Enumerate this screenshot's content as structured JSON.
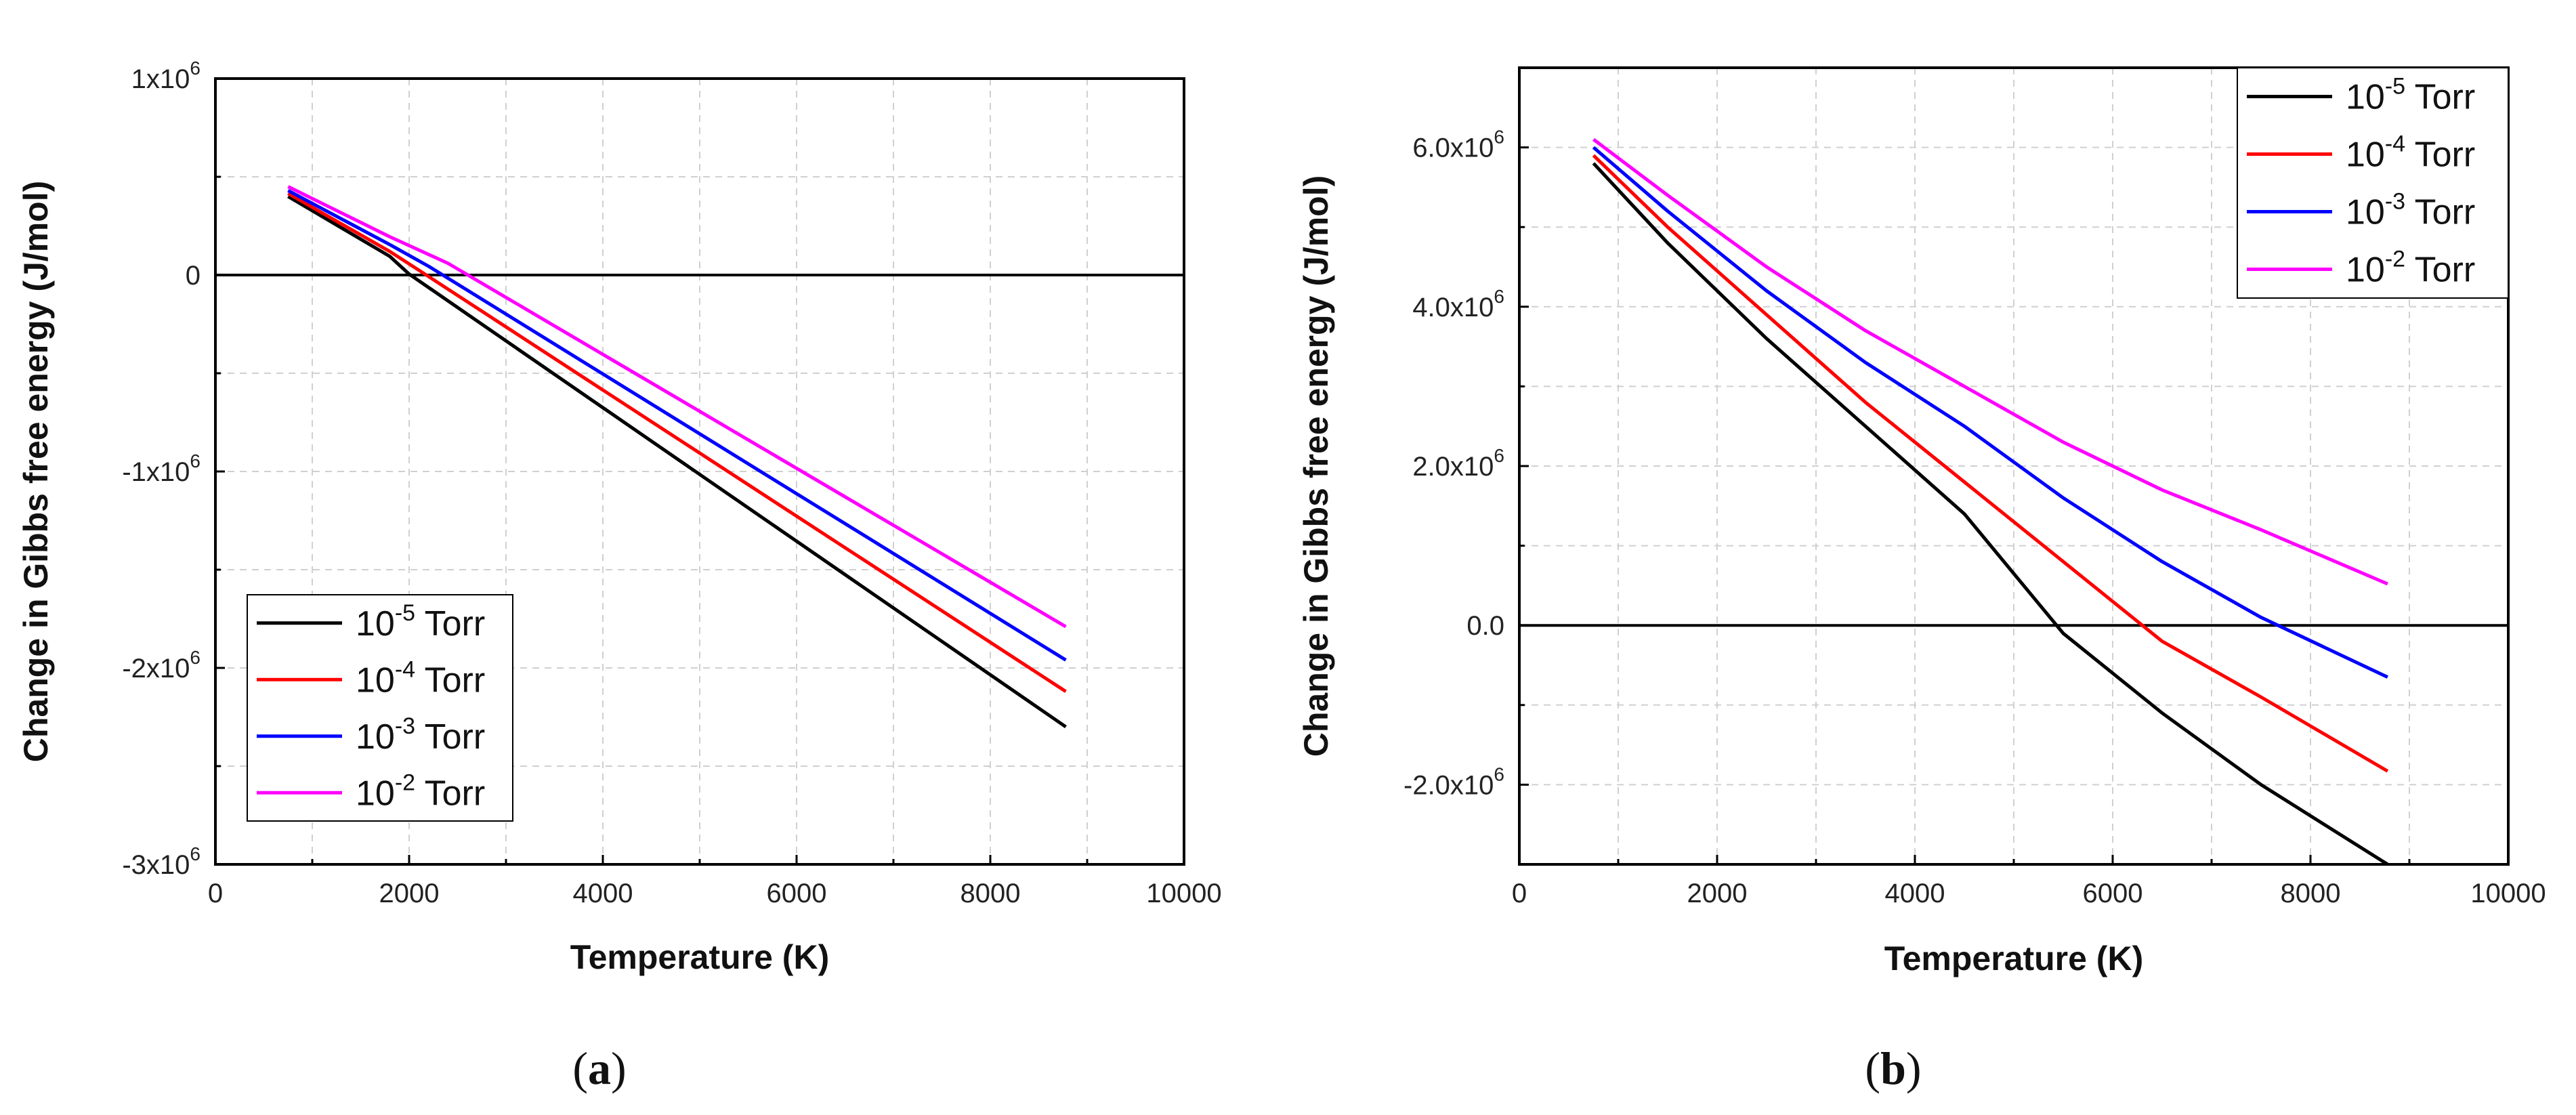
{
  "chart_data": [
    {
      "type": "line",
      "panel_label": "a",
      "xlabel": "Temperature (K)",
      "ylabel": "Change in Gibbs free energy (J/mol)",
      "xlim": [
        0,
        10000
      ],
      "ylim": [
        -3000000,
        1000000
      ],
      "x_ticks": [
        0,
        2000,
        4000,
        6000,
        8000,
        10000
      ],
      "x_tick_labels": [
        "0",
        "2000",
        "4000",
        "6000",
        "8000",
        "10000"
      ],
      "y_ticks": [
        1000000,
        0,
        -1000000,
        -2000000,
        -3000000
      ],
      "y_tick_labels": [
        {
          "base": "1x10",
          "exp": "6"
        },
        {
          "base": "0",
          "exp": ""
        },
        {
          "base": "-1x10",
          "exp": "6"
        },
        {
          "base": "-2x10",
          "exp": "6"
        },
        {
          "base": "-3x10",
          "exp": "6"
        }
      ],
      "grid": true,
      "zero_line": true,
      "legend_position": "bottom-left",
      "series": [
        {
          "name": "10-5 Torr",
          "legend_base": "10",
          "legend_exp": "-5",
          "legend_unit": " Torr",
          "color": "#000000",
          "x": [
            750,
            1800,
            2000,
            8780
          ],
          "y": [
            400000,
            95000,
            5000,
            -2300000
          ]
        },
        {
          "name": "10-4 Torr",
          "legend_base": "10",
          "legend_exp": "-4",
          "legend_unit": " Torr",
          "color": "#ff0000",
          "x": [
            750,
            1800,
            2100,
            8780
          ],
          "y": [
            415000,
            120000,
            25000,
            -2120000
          ]
        },
        {
          "name": "10-3 Torr",
          "legend_base": "10",
          "legend_exp": "-3",
          "legend_unit": " Torr",
          "color": "#0000ff",
          "x": [
            750,
            1800,
            2200,
            8780
          ],
          "y": [
            430000,
            155000,
            45000,
            -1960000
          ]
        },
        {
          "name": "10-2 Torr",
          "legend_base": "10",
          "legend_exp": "-2",
          "legend_unit": " Torr",
          "color": "#ff00ff",
          "x": [
            750,
            1800,
            2400,
            8780
          ],
          "y": [
            450000,
            195000,
            60000,
            -1790000
          ]
        }
      ]
    },
    {
      "type": "line",
      "panel_label": "b",
      "xlabel": "Temperature (K)",
      "ylabel": "Change in Gibbs free energy (J/mol)",
      "xlim": [
        0,
        10000
      ],
      "ylim": [
        -3000000,
        7000000
      ],
      "x_ticks": [
        0,
        2000,
        4000,
        6000,
        8000,
        10000
      ],
      "x_tick_labels": [
        "0",
        "2000",
        "4000",
        "6000",
        "8000",
        "10000"
      ],
      "y_ticks": [
        6000000,
        4000000,
        2000000,
        0,
        -2000000
      ],
      "y_tick_labels": [
        {
          "base": "6.0x10",
          "exp": "6"
        },
        {
          "base": "4.0x10",
          "exp": "6"
        },
        {
          "base": "2.0x10",
          "exp": "6"
        },
        {
          "base": "0.0",
          "exp": ""
        },
        {
          "base": "-2.0x10",
          "exp": "6"
        }
      ],
      "grid": true,
      "zero_line": true,
      "legend_position": "top-right",
      "series": [
        {
          "name": "10-5 Torr",
          "legend_base": "10",
          "legend_exp": "-5",
          "legend_unit": " Torr",
          "color": "#000000",
          "x": [
            750,
            1500,
            2500,
            3500,
            4500,
            5500,
            6500,
            7500,
            8780
          ],
          "y": [
            5800000,
            4800000,
            3600000,
            2500000,
            1400000,
            -100000,
            -1100000,
            -2000000,
            -3000000
          ]
        },
        {
          "name": "10-4 Torr",
          "legend_base": "10",
          "legend_exp": "-4",
          "legend_unit": " Torr",
          "color": "#ff0000",
          "x": [
            750,
            1500,
            2500,
            3500,
            4500,
            5500,
            6500,
            7500,
            8780
          ],
          "y": [
            5900000,
            5000000,
            3900000,
            2800000,
            1800000,
            800000,
            -200000,
            -900000,
            -1830000
          ]
        },
        {
          "name": "10-3 Torr",
          "legend_base": "10",
          "legend_exp": "-3",
          "legend_unit": " Torr",
          "color": "#0000ff",
          "x": [
            750,
            1500,
            2500,
            3500,
            4500,
            5500,
            6500,
            7500,
            8780
          ],
          "y": [
            6000000,
            5200000,
            4200000,
            3300000,
            2500000,
            1600000,
            800000,
            100000,
            -650000
          ]
        },
        {
          "name": "10-2 Torr",
          "legend_base": "10",
          "legend_exp": "-2",
          "legend_unit": " Torr",
          "color": "#ff00ff",
          "x": [
            750,
            1500,
            2500,
            3500,
            4500,
            5500,
            6500,
            7500,
            8780
          ],
          "y": [
            6100000,
            5400000,
            4500000,
            3700000,
            3000000,
            2300000,
            1700000,
            1200000,
            520000
          ]
        }
      ]
    }
  ]
}
